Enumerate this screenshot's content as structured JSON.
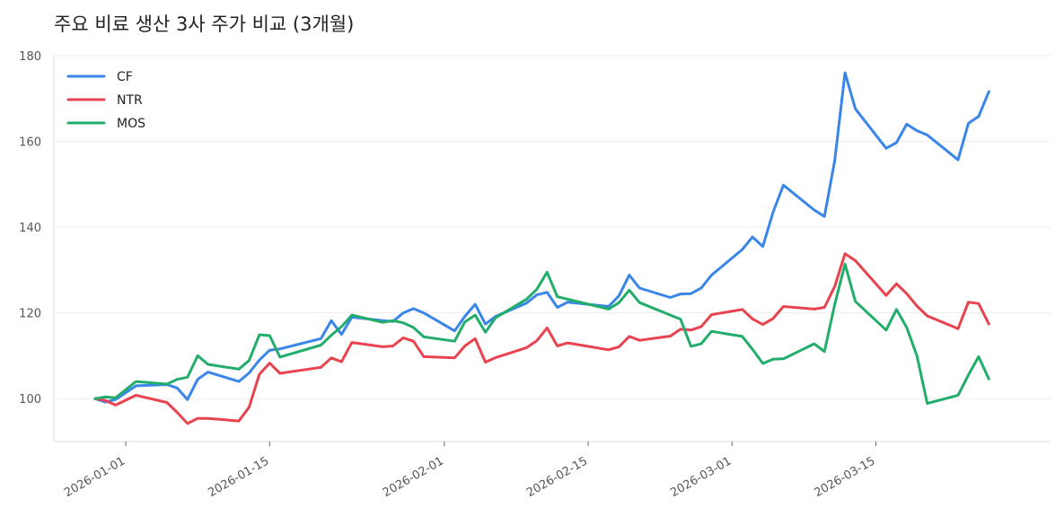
{
  "chart_data": {
    "type": "line",
    "title": "주요 비료 생산 3사 주가 비교 (3개월)",
    "xlabel": "",
    "ylabel": "",
    "x_ticks": [
      "2026-01-01",
      "2026-01-15",
      "2026-02-01",
      "2026-02-15",
      "2026-03-01",
      "2026-03-15"
    ],
    "y_ticks": [
      100,
      120,
      140,
      160,
      180
    ],
    "xlim": [
      "2025-12-25",
      "2026-04-01"
    ],
    "ylim": [
      90,
      180
    ],
    "grid": "horizontal",
    "legend_position": "top-left",
    "series": [
      {
        "name": "CF",
        "color": "#3a86e8",
        "points": [
          [
            "2025-12-29",
            100
          ],
          [
            "2025-12-30",
            99.2
          ],
          [
            "2025-12-31",
            99.8
          ],
          [
            "2026-01-02",
            103
          ],
          [
            "2026-01-05",
            103.3
          ],
          [
            "2026-01-06",
            102.5
          ],
          [
            "2026-01-07",
            99.8
          ],
          [
            "2026-01-08",
            104.5
          ],
          [
            "2026-01-09",
            106.2
          ],
          [
            "2026-01-12",
            104
          ],
          [
            "2026-01-13",
            106
          ],
          [
            "2026-01-14",
            109
          ],
          [
            "2026-01-15",
            111.3
          ],
          [
            "2026-01-16",
            111.6
          ],
          [
            "2026-01-20",
            114
          ],
          [
            "2026-01-21",
            118.2
          ],
          [
            "2026-01-22",
            115
          ],
          [
            "2026-01-23",
            119
          ],
          [
            "2026-01-26",
            118.2
          ],
          [
            "2026-01-27",
            118
          ],
          [
            "2026-01-28",
            120
          ],
          [
            "2026-01-29",
            121
          ],
          [
            "2026-01-30",
            120
          ],
          [
            "2026-02-02",
            115.8
          ],
          [
            "2026-02-03",
            119.2
          ],
          [
            "2026-02-04",
            122
          ],
          [
            "2026-02-05",
            117.4
          ],
          [
            "2026-02-06",
            119.2
          ],
          [
            "2026-02-09",
            122.3
          ],
          [
            "2026-02-10",
            124.2
          ],
          [
            "2026-02-11",
            124.8
          ],
          [
            "2026-02-12",
            121.3
          ],
          [
            "2026-02-13",
            122.5
          ],
          [
            "2026-02-17",
            121.5
          ],
          [
            "2026-02-18",
            124
          ],
          [
            "2026-02-19",
            128.8
          ],
          [
            "2026-02-20",
            125.8
          ],
          [
            "2026-02-23",
            123.6
          ],
          [
            "2026-02-24",
            124.4
          ],
          [
            "2026-02-25",
            124.5
          ],
          [
            "2026-02-26",
            125.8
          ],
          [
            "2026-02-27",
            128.8
          ],
          [
            "2026-03-02",
            134.8
          ],
          [
            "2026-03-03",
            137.7
          ],
          [
            "2026-03-04",
            135.5
          ],
          [
            "2026-03-05",
            143.5
          ],
          [
            "2026-03-06",
            149.8
          ],
          [
            "2026-03-09",
            144
          ],
          [
            "2026-03-10",
            142.5
          ],
          [
            "2026-03-11",
            155.6
          ],
          [
            "2026-03-12",
            176
          ],
          [
            "2026-03-13",
            167.6
          ],
          [
            "2026-03-16",
            158.4
          ],
          [
            "2026-03-17",
            159.7
          ],
          [
            "2026-03-18",
            164
          ],
          [
            "2026-03-19",
            162.5
          ],
          [
            "2026-03-20",
            161.5
          ],
          [
            "2026-03-23",
            155.7
          ],
          [
            "2026-03-24",
            164.2
          ],
          [
            "2026-03-25",
            165.8
          ],
          [
            "2026-03-26",
            171.6
          ]
        ]
      },
      {
        "name": "NTR",
        "color": "#e8434f",
        "points": [
          [
            "2025-12-29",
            100
          ],
          [
            "2025-12-30",
            99.6
          ],
          [
            "2025-12-31",
            98.5
          ],
          [
            "2026-01-02",
            100.8
          ],
          [
            "2026-01-05",
            99.1
          ],
          [
            "2026-01-06",
            96.8
          ],
          [
            "2026-01-07",
            94.2
          ],
          [
            "2026-01-08",
            95.4
          ],
          [
            "2026-01-09",
            95.4
          ],
          [
            "2026-01-12",
            94.8
          ],
          [
            "2026-01-13",
            98
          ],
          [
            "2026-01-14",
            105.7
          ],
          [
            "2026-01-15",
            108.3
          ],
          [
            "2026-01-16",
            105.9
          ],
          [
            "2026-01-20",
            107.3
          ],
          [
            "2026-01-21",
            109.5
          ],
          [
            "2026-01-22",
            108.6
          ],
          [
            "2026-01-23",
            113.1
          ],
          [
            "2026-01-26",
            112.1
          ],
          [
            "2026-01-27",
            112.3
          ],
          [
            "2026-01-28",
            114.2
          ],
          [
            "2026-01-29",
            113.4
          ],
          [
            "2026-01-30",
            109.8
          ],
          [
            "2026-02-02",
            109.5
          ],
          [
            "2026-02-03",
            112.3
          ],
          [
            "2026-02-04",
            114
          ],
          [
            "2026-02-05",
            108.5
          ],
          [
            "2026-02-06",
            109.6
          ],
          [
            "2026-02-09",
            111.9
          ],
          [
            "2026-02-10",
            113.5
          ],
          [
            "2026-02-11",
            116.5
          ],
          [
            "2026-02-12",
            112.3
          ],
          [
            "2026-02-13",
            113
          ],
          [
            "2026-02-17",
            111.4
          ],
          [
            "2026-02-18",
            112.1
          ],
          [
            "2026-02-19",
            114.5
          ],
          [
            "2026-02-20",
            113.6
          ],
          [
            "2026-02-23",
            114.6
          ],
          [
            "2026-02-24",
            116.2
          ],
          [
            "2026-02-25",
            116
          ],
          [
            "2026-02-26",
            116.8
          ],
          [
            "2026-02-27",
            119.6
          ],
          [
            "2026-03-02",
            120.8
          ],
          [
            "2026-03-03",
            118.6
          ],
          [
            "2026-03-04",
            117.3
          ],
          [
            "2026-03-05",
            118.7
          ],
          [
            "2026-03-06",
            121.5
          ],
          [
            "2026-03-09",
            120.9
          ],
          [
            "2026-03-10",
            121.3
          ],
          [
            "2026-03-11",
            126.2
          ],
          [
            "2026-03-12",
            133.8
          ],
          [
            "2026-03-13",
            132.2
          ],
          [
            "2026-03-16",
            124.1
          ],
          [
            "2026-03-17",
            126.8
          ],
          [
            "2026-03-18",
            124.5
          ],
          [
            "2026-03-19",
            121.6
          ],
          [
            "2026-03-20",
            119.3
          ],
          [
            "2026-03-23",
            116.3
          ],
          [
            "2026-03-24",
            122.5
          ],
          [
            "2026-03-25",
            122.2
          ],
          [
            "2026-03-26",
            117.4
          ]
        ]
      },
      {
        "name": "MOS",
        "color": "#23ad6b",
        "points": [
          [
            "2025-12-29",
            100
          ],
          [
            "2025-12-30",
            100.4
          ],
          [
            "2025-12-31",
            100.2
          ],
          [
            "2026-01-02",
            104
          ],
          [
            "2026-01-05",
            103.4
          ],
          [
            "2026-01-06",
            104.5
          ],
          [
            "2026-01-07",
            105
          ],
          [
            "2026-01-08",
            110
          ],
          [
            "2026-01-09",
            108
          ],
          [
            "2026-01-12",
            106.9
          ],
          [
            "2026-01-13",
            108.9
          ],
          [
            "2026-01-14",
            114.9
          ],
          [
            "2026-01-15",
            114.7
          ],
          [
            "2026-01-16",
            109.7
          ],
          [
            "2026-01-20",
            112.5
          ],
          [
            "2026-01-21",
            114.8
          ],
          [
            "2026-01-22",
            116.8
          ],
          [
            "2026-01-23",
            119.5
          ],
          [
            "2026-01-26",
            117.8
          ],
          [
            "2026-01-27",
            118.2
          ],
          [
            "2026-01-28",
            117.7
          ],
          [
            "2026-01-29",
            116.6
          ],
          [
            "2026-01-30",
            114.4
          ],
          [
            "2026-02-02",
            113.4
          ],
          [
            "2026-02-03",
            117.9
          ],
          [
            "2026-02-04",
            119.5
          ],
          [
            "2026-02-05",
            115.5
          ],
          [
            "2026-02-06",
            118.9
          ],
          [
            "2026-02-09",
            123.2
          ],
          [
            "2026-02-10",
            125.5
          ],
          [
            "2026-02-11",
            129.5
          ],
          [
            "2026-02-12",
            123.8
          ],
          [
            "2026-02-13",
            123.2
          ],
          [
            "2026-02-17",
            120.9
          ],
          [
            "2026-02-18",
            122.4
          ],
          [
            "2026-02-19",
            125.3
          ],
          [
            "2026-02-20",
            122.4
          ],
          [
            "2026-02-23",
            119.5
          ],
          [
            "2026-02-24",
            118.5
          ],
          [
            "2026-02-25",
            112.2
          ],
          [
            "2026-02-26",
            112.8
          ],
          [
            "2026-02-27",
            115.7
          ],
          [
            "2026-03-02",
            114.5
          ],
          [
            "2026-03-03",
            111.5
          ],
          [
            "2026-03-04",
            108.2
          ],
          [
            "2026-03-05",
            109.2
          ],
          [
            "2026-03-06",
            109.3
          ],
          [
            "2026-03-09",
            112.8
          ],
          [
            "2026-03-10",
            111
          ],
          [
            "2026-03-11",
            122
          ],
          [
            "2026-03-12",
            131.4
          ],
          [
            "2026-03-13",
            122.7
          ],
          [
            "2026-03-16",
            116
          ],
          [
            "2026-03-17",
            120.8
          ],
          [
            "2026-03-18",
            116.6
          ],
          [
            "2026-03-19",
            110
          ],
          [
            "2026-03-20",
            98.9
          ],
          [
            "2026-03-23",
            100.8
          ],
          [
            "2026-03-24",
            105.5
          ],
          [
            "2026-03-25",
            109.8
          ],
          [
            "2026-03-26",
            104.6
          ]
        ]
      }
    ]
  }
}
